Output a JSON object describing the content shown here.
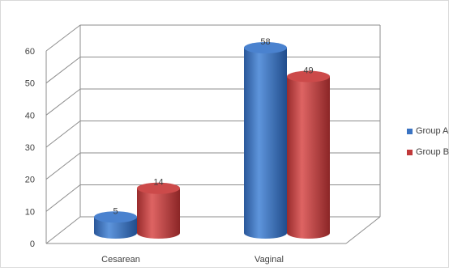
{
  "chart_data": {
    "type": "bar",
    "categories": [
      "Cesarean",
      "Vaginal"
    ],
    "series": [
      {
        "name": "Group A",
        "values": [
          5,
          58
        ],
        "color": "#3a73c2"
      },
      {
        "name": "Group B",
        "values": [
          14,
          49
        ],
        "color": "#c0393a"
      }
    ],
    "ylim": [
      0,
      60
    ],
    "yticks": [
      "0",
      "10",
      "20",
      "30",
      "40",
      "50",
      "60"
    ],
    "data_labels": [
      [
        "5",
        "58"
      ],
      [
        "14",
        "49"
      ]
    ],
    "grid": true,
    "legend_position": "right",
    "style": "3d-cylinder"
  }
}
